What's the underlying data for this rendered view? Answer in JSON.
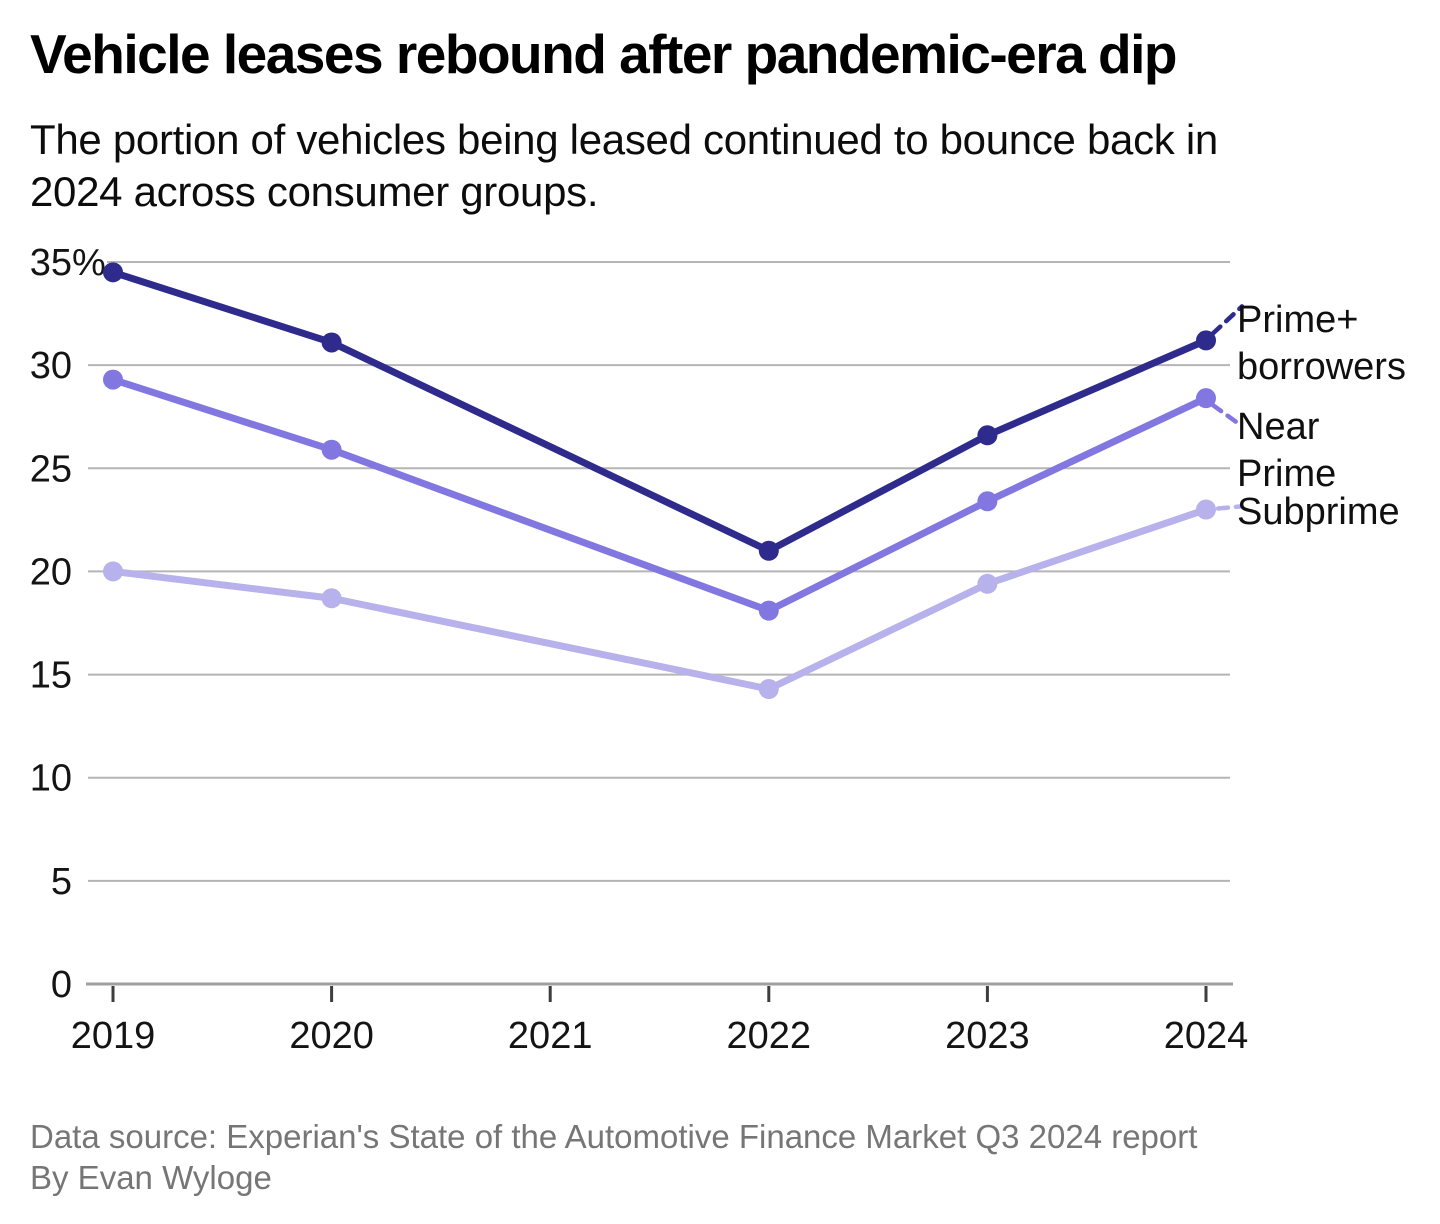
{
  "header": {
    "title": "Vehicle leases rebound after pandemic-era dip",
    "subtitle_line1": "The portion of vehicles being leased continued to bounce back in",
    "subtitle_line2": "2024 across consumer groups."
  },
  "chart_data": {
    "type": "line",
    "title": "Vehicle leases rebound after pandemic-era dip",
    "subtitle": "The portion of vehicles being leased continued to bounce back in 2024 across consumer groups.",
    "x_categories": [
      "2019",
      "2020",
      "2021",
      "2022",
      "2023",
      "2024"
    ],
    "series": [
      {
        "name": "Prime+ borrowers",
        "color": "#2e2b8c",
        "values": [
          34.5,
          31.1,
          null,
          21.0,
          26.6,
          31.2
        ]
      },
      {
        "name": "Near Prime",
        "color": "#8277e0",
        "values": [
          29.3,
          25.9,
          null,
          18.1,
          23.4,
          28.4
        ]
      },
      {
        "name": "Subprime",
        "color": "#b7b1ec",
        "values": [
          20.0,
          18.7,
          null,
          14.3,
          19.4,
          23.0
        ]
      }
    ],
    "ylim": [
      0,
      35
    ],
    "yticks": [
      0,
      5,
      10,
      15,
      20,
      25,
      30,
      35
    ],
    "ytick_labels": [
      "0",
      "5",
      "10",
      "15",
      "20",
      "25",
      "30",
      "35%"
    ],
    "unit": "%",
    "grid": true,
    "legend_position": "right-edge-annotations",
    "colors": {
      "gridline": "#b5b5b5",
      "axis_line": "#9f9f9f",
      "tick_mark": "#3d3d3d",
      "tick_label": "#141414"
    }
  },
  "footer": {
    "source": "Data source: Experian's State of the Automotive Finance Market Q3 2024 report",
    "byline": "By Evan Wyloge"
  }
}
